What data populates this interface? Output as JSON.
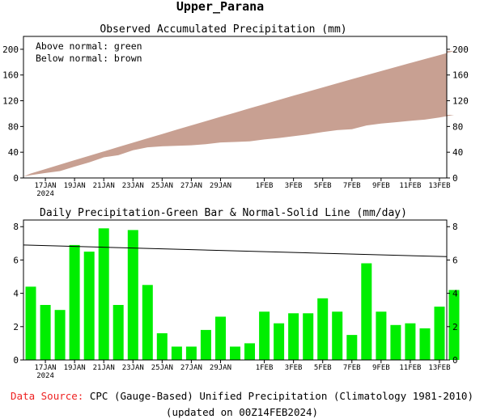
{
  "page_title": "Upper_Parana",
  "footer": {
    "source_label": "Data Source:",
    "source_text": "CPC (Gauge-Based) Unified Precipitation (Climatology 1981-2010)",
    "updated": "(updated on 00Z14FEB2024)"
  },
  "colors": {
    "above": "#00dd00",
    "below": "#c8a092",
    "bar": "#00ee00",
    "normal_line": "#000000",
    "source_label": "#ee2222"
  },
  "chart_data": [
    {
      "type": "area",
      "title": "Observed Accumulated Precipitation (mm)",
      "legend": [
        "Above normal: green",
        "Below normal: brown"
      ],
      "legend_position": "top-left",
      "x_start": "16JAN2024",
      "x_end": "13FEB2024",
      "x_ticks": [
        {
          "day": "17JAN2024",
          "label": "17JAN",
          "sub": "2024"
        },
        {
          "day": "19JAN2024",
          "label": "19JAN"
        },
        {
          "day": "21JAN2024",
          "label": "21JAN"
        },
        {
          "day": "23JAN2024",
          "label": "23JAN"
        },
        {
          "day": "25JAN2024",
          "label": "25JAN"
        },
        {
          "day": "27JAN2024",
          "label": "27JAN"
        },
        {
          "day": "29JAN2024",
          "label": "29JAN"
        },
        {
          "day": "01FEB2024",
          "label": "1FEB"
        },
        {
          "day": "03FEB2024",
          "label": "3FEB"
        },
        {
          "day": "05FEB2024",
          "label": "5FEB"
        },
        {
          "day": "07FEB2024",
          "label": "7FEB"
        },
        {
          "day": "09FEB2024",
          "label": "9FEB"
        },
        {
          "day": "11FEB2024",
          "label": "11FEB"
        },
        {
          "day": "13FEB2024",
          "label": "13FEB"
        }
      ],
      "ylim": [
        0,
        220
      ],
      "y_ticks": [
        0,
        40,
        80,
        120,
        160,
        200
      ],
      "grid": false,
      "series": [
        {
          "name": "Observed",
          "values": [
            4.4,
            7.7,
            10.7,
            17.6,
            24.1,
            32.0,
            35.3,
            43.1,
            47.6,
            49.2,
            50.0,
            50.8,
            52.6,
            55.2,
            56.0,
            57.0,
            59.9,
            62.1,
            64.9,
            67.7,
            71.4,
            74.3,
            75.8,
            81.6,
            84.5,
            86.6,
            88.8,
            90.7,
            93.9,
            98.1
          ]
        },
        {
          "name": "Normal",
          "values": [
            6.9,
            13.8,
            20.7,
            27.6,
            34.4,
            41.2,
            48.0,
            54.8,
            61.6,
            68.3,
            75.0,
            81.7,
            88.4,
            95.0,
            101.6,
            108.2,
            114.8,
            121.3,
            127.8,
            134.3,
            140.7,
            147.1,
            153.5,
            159.8,
            166.1,
            172.4,
            178.6,
            184.8,
            191.0,
            197.2
          ]
        }
      ]
    },
    {
      "type": "bar",
      "title": "Daily Precipitation-Green Bar & Normal-Solid Line (mm/day)",
      "x_start": "16JAN2024",
      "x_end": "13FEB2024",
      "ylim": [
        0,
        8.4
      ],
      "y_ticks": [
        0,
        2,
        4,
        6,
        8
      ],
      "grid": false,
      "series": [
        {
          "name": "Daily",
          "values": [
            4.4,
            3.3,
            3.0,
            6.9,
            6.5,
            7.9,
            3.3,
            7.8,
            4.5,
            1.6,
            0.8,
            0.8,
            1.8,
            2.6,
            0.8,
            1.0,
            2.9,
            2.2,
            2.8,
            2.8,
            3.7,
            2.9,
            1.5,
            5.8,
            2.9,
            2.1,
            2.2,
            1.9,
            3.2,
            4.2
          ]
        },
        {
          "name": "Normal",
          "type": "line",
          "values": [
            6.9,
            6.2
          ]
        }
      ]
    }
  ]
}
